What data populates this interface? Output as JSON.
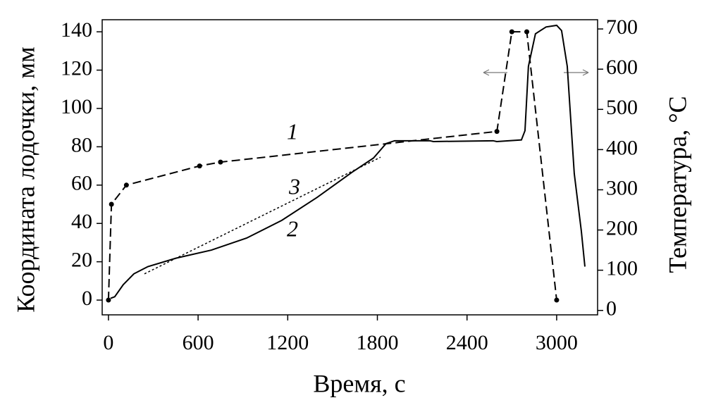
{
  "chart_data": {
    "type": "line",
    "xlabel": "Время, с",
    "ylabel": "Координата лодочки, мм",
    "y2label": "Температура, °C",
    "xlim": [
      -42,
      3274
    ],
    "xticks": [
      0,
      600,
      1200,
      1800,
      2400,
      3000
    ],
    "ylim": [
      -7.7,
      146.3
    ],
    "yticks": [
      0,
      20,
      40,
      60,
      80,
      100,
      120,
      140
    ],
    "y2lim": [
      -11,
      723
    ],
    "y2ticks": [
      0,
      100,
      200,
      300,
      400,
      500,
      600,
      700
    ],
    "series": [
      {
        "name": "1",
        "color": "#000000",
        "dash": "dashed",
        "markers": true,
        "x": [
          0,
          20,
          120,
          610,
          750,
          2600,
          2700,
          2800,
          3000
        ],
        "values": [
          0,
          50,
          60,
          70,
          72,
          88,
          140,
          140,
          0
        ]
      },
      {
        "name": "2",
        "color": "#000000",
        "dash": "solid",
        "markers": false,
        "axis": "y2",
        "x": [
          14,
          42,
          99,
          170,
          264,
          453,
          689,
          925,
          1160,
          1396,
          1632,
          1774,
          1858,
          1915,
          2151,
          2175,
          2575,
          2599,
          2764,
          2788,
          2811,
          2858,
          2929,
          3000,
          3033,
          3071,
          3118,
          3165,
          3189
        ],
        "values": [
          30,
          34,
          64,
          91,
          109,
          130,
          150,
          180,
          224,
          281,
          344,
          379,
          415,
          422,
          422,
          420,
          422,
          420,
          424,
          447,
          607,
          688,
          705,
          709,
          696,
          607,
          340,
          198,
          109
        ]
      },
      {
        "name": "3",
        "color": "#000000",
        "dash": "dotted",
        "markers": false,
        "axis": "y2",
        "x": [
          241,
          1821
        ],
        "values": [
          91,
          381
        ]
      }
    ]
  }
}
